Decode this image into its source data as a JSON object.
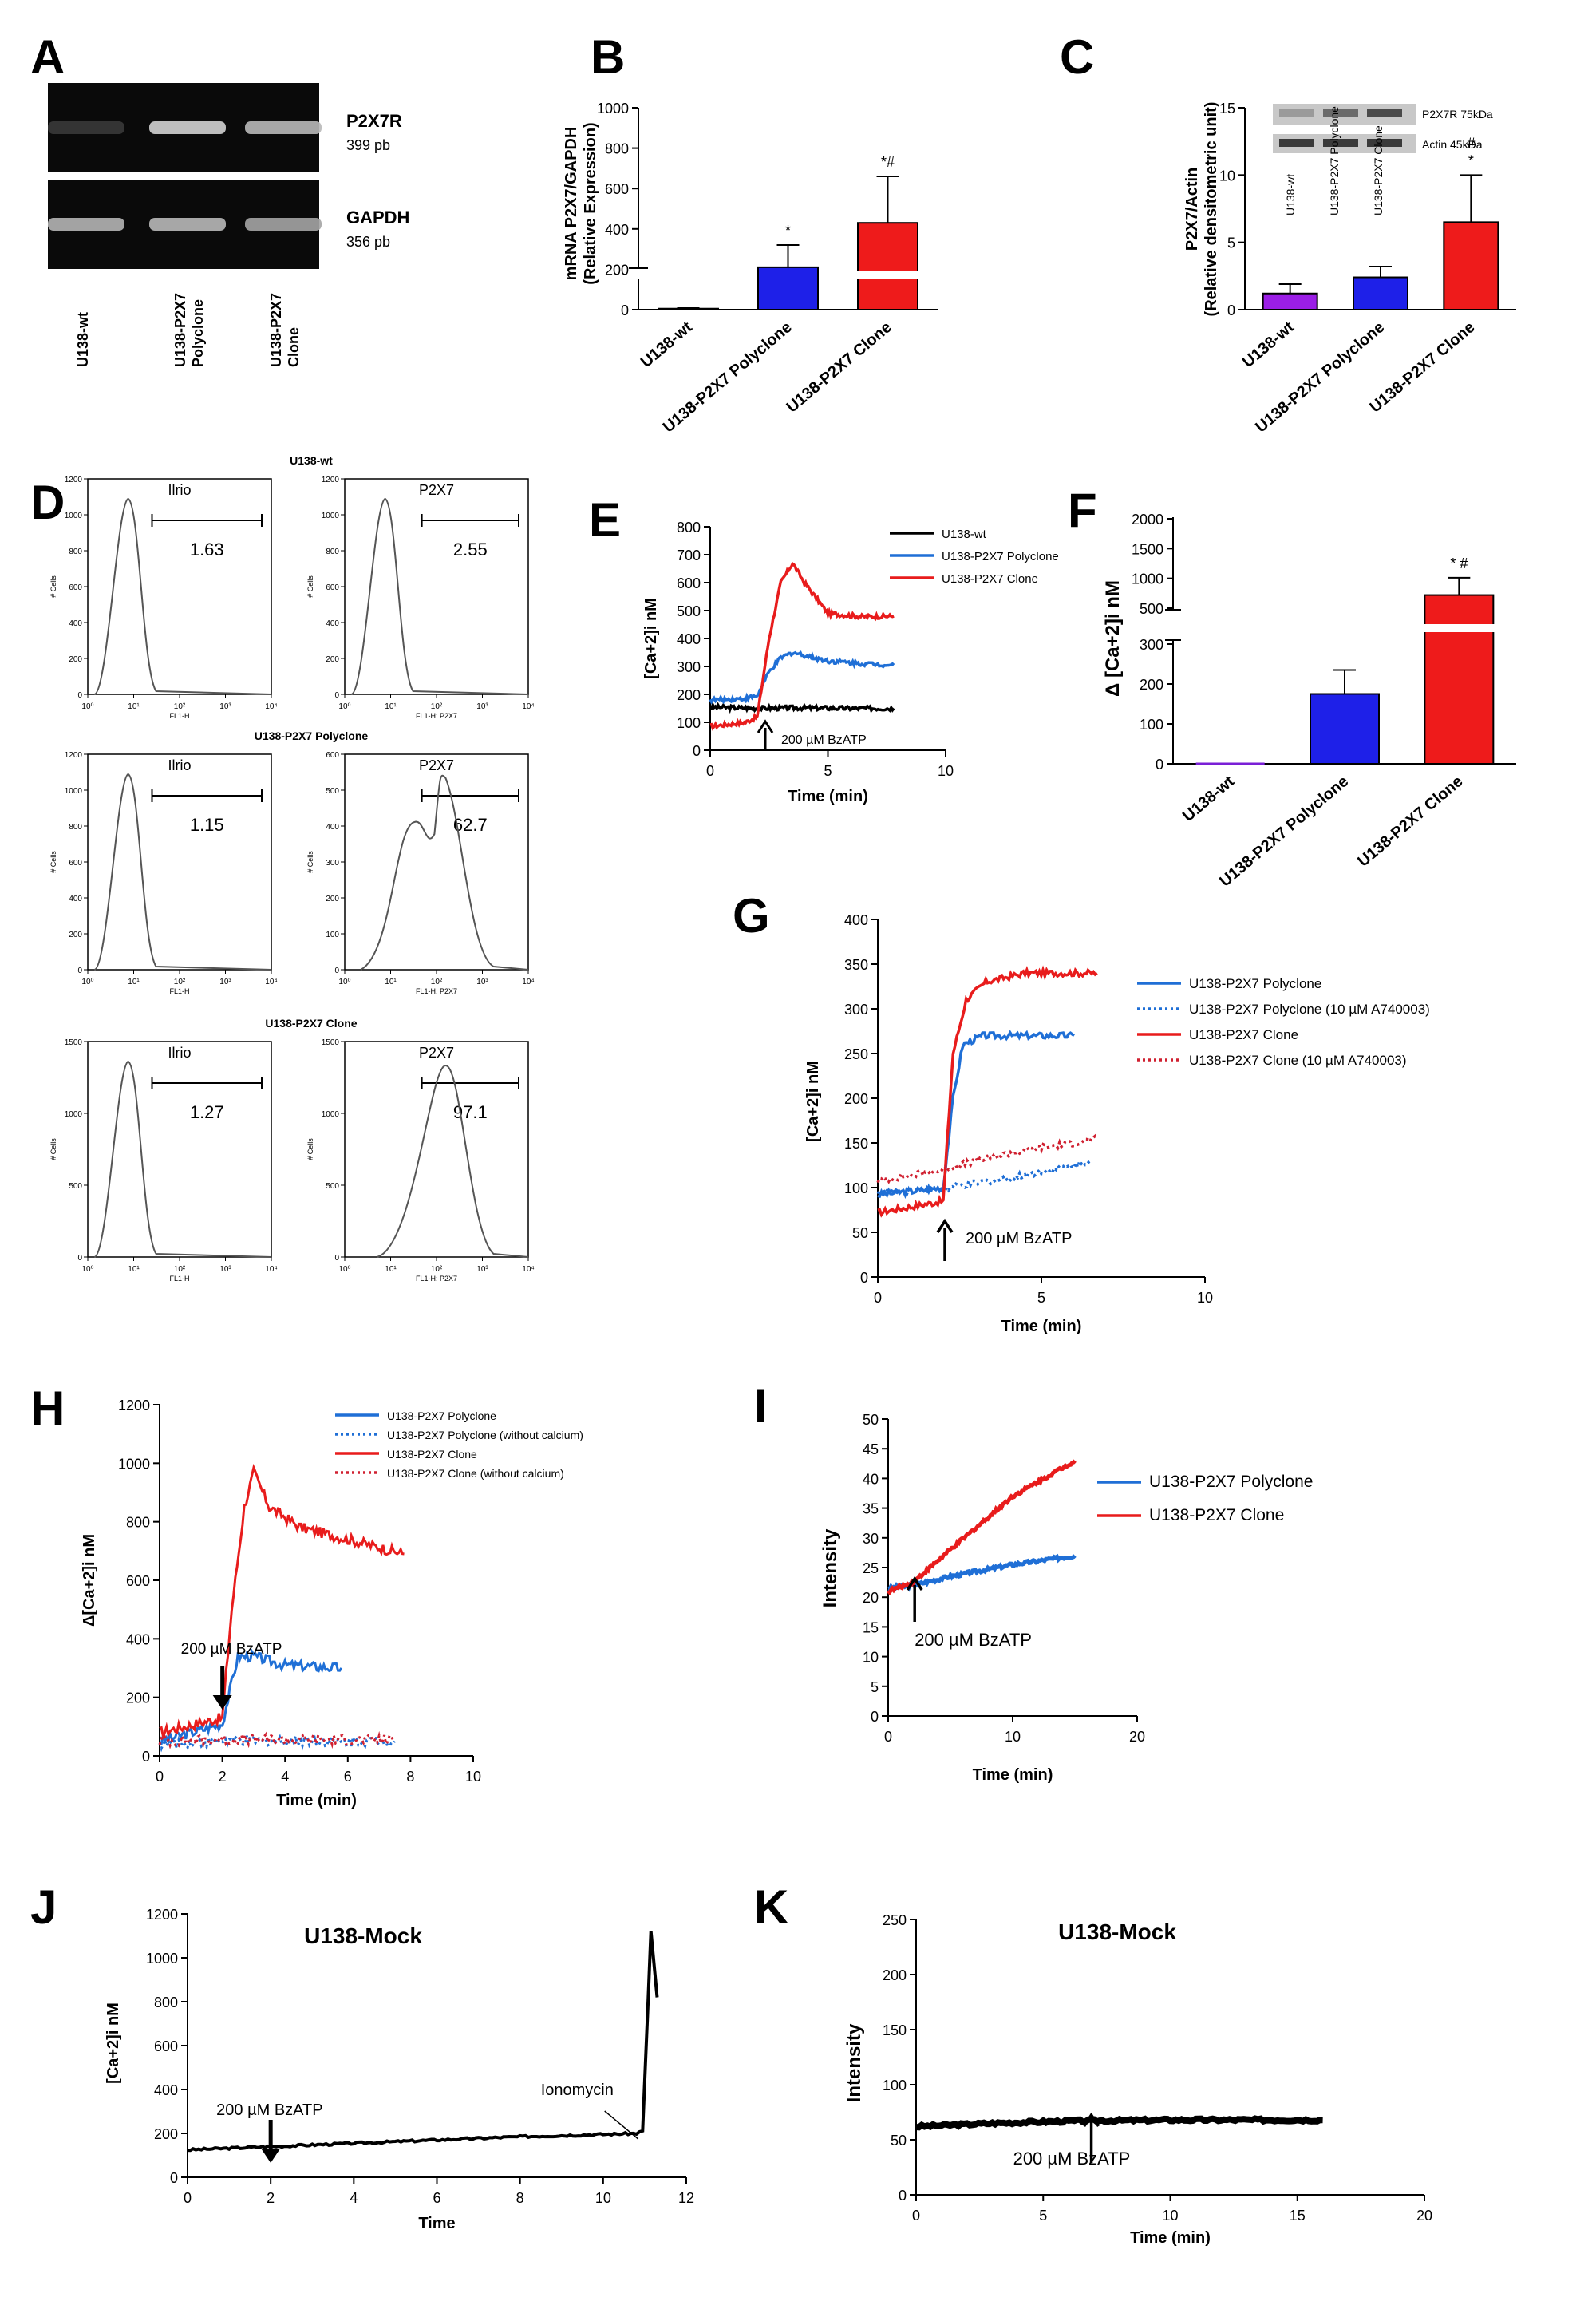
{
  "chart_data": [
    {
      "panel": "A",
      "type": "gel",
      "bands": [
        {
          "name": "P2X7R",
          "size": "399 pb",
          "intensities": [
            0.08,
            0.85,
            0.72
          ]
        },
        {
          "name": "GAPDH",
          "size": "356 pb",
          "intensities": [
            0.7,
            0.72,
            0.62
          ]
        }
      ],
      "lanes": [
        "U138-wt",
        "U138-P2X7 Polyclone",
        "U138-P2X7 Clone"
      ]
    },
    {
      "panel": "B",
      "type": "bar",
      "ylabel": "mRNA P2X7/GAPDH (Relative Expression)",
      "categories": [
        "U138-wt",
        "U138-P2X7 Polyclone",
        "U138-P2X7 Clone"
      ],
      "colors": [
        "#7a1fd6",
        "#1e20e8",
        "#ee1b1b"
      ],
      "values": [
        5,
        210,
        430
      ],
      "errors": [
        3,
        110,
        230
      ],
      "annotations": [
        "",
        "*",
        "*#"
      ],
      "yticks": [
        0,
        200,
        400,
        600,
        800,
        1000
      ],
      "ylim": [
        0,
        1000
      ]
    },
    {
      "panel": "C",
      "type": "bar",
      "ylabel": "P2X7/Actin (Relative densitometric unit)",
      "categories": [
        "U138-wt",
        "U138-P2X7 Polyclone",
        "U138-P2X7 Clone"
      ],
      "colors": [
        "#9b1ee6",
        "#1e20e8",
        "#ee1b1b"
      ],
      "values": [
        1.2,
        2.4,
        6.5
      ],
      "errors": [
        0.7,
        0.8,
        3.5
      ],
      "annotations": [
        "",
        "",
        "#\n*"
      ],
      "yticks": [
        0,
        5,
        10,
        15
      ],
      "ylim": [
        0,
        15
      ],
      "blot": {
        "labels": [
          "P2X7R 75kDa",
          "Actin 45kDa"
        ],
        "lanes": [
          "U138-wt",
          "U138-P2X7 Polyclone",
          "U138-P2X7 Clone"
        ]
      }
    },
    {
      "panel": "D",
      "type": "histogram",
      "rows": [
        {
          "title": "U138-wt",
          "panels": [
            {
              "label": "Ilrio",
              "value": "1.63",
              "xlabel": "FL1-H",
              "ymax": 1200,
              "yticks": [
                0,
                200,
                400,
                600,
                800,
                1000,
                1200
              ]
            },
            {
              "label": "P2X7",
              "value": "2.55",
              "xlabel": "FL1-H: P2X7",
              "ymax": 1200,
              "yticks": [
                0,
                200,
                400,
                600,
                800,
                1000,
                1200
              ]
            }
          ]
        },
        {
          "title": "U138-P2X7 Polyclone",
          "panels": [
            {
              "label": "Ilrio",
              "value": "1.15",
              "xlabel": "FL1-H",
              "ymax": 1200,
              "yticks": [
                0,
                200,
                400,
                600,
                800,
                1000,
                1200
              ]
            },
            {
              "label": "P2X7",
              "value": "62.7",
              "xlabel": "FL1-H: P2X7",
              "ymax": 600,
              "yticks": [
                0,
                100,
                200,
                300,
                400,
                500,
                600
              ]
            }
          ]
        },
        {
          "title": "U138-P2X7 Clone",
          "panels": [
            {
              "label": "Ilrio",
              "value": "1.27",
              "xlabel": "FL1-H",
              "ymax": 1500,
              "yticks": [
                0,
                500,
                1000,
                1500
              ]
            },
            {
              "label": "P2X7",
              "value": "97.1",
              "xlabel": "FL1-H: P2X7",
              "ymax": 1500,
              "yticks": [
                0,
                500,
                1000,
                1500
              ]
            }
          ]
        }
      ],
      "ylabel": "# Cells",
      "xticks": [
        "10⁰",
        "10¹",
        "10²",
        "10³",
        "10⁴"
      ]
    },
    {
      "panel": "E",
      "type": "line",
      "xlabel": "Time (min)",
      "ylabel": "[Ca+2]i nM",
      "xlim": [
        0,
        10
      ],
      "ylim": [
        0,
        800
      ],
      "xticks": [
        0,
        5,
        10
      ],
      "yticks": [
        0,
        100,
        200,
        300,
        400,
        500,
        600,
        700,
        800
      ],
      "annotation": "200 µM BzATP",
      "arrow_x": 2,
      "series": [
        {
          "name": "U138-wt",
          "color": "#000000",
          "points": [
            [
              0,
              155
            ],
            [
              2,
              150
            ],
            [
              4,
              152
            ],
            [
              6,
              150
            ],
            [
              7.8,
              150
            ]
          ]
        },
        {
          "name": "U138-P2X7 Polyclone",
          "color": "#1f6fd6",
          "points": [
            [
              0,
              180
            ],
            [
              1.5,
              185
            ],
            [
              2,
              195
            ],
            [
              2.5,
              280
            ],
            [
              3,
              330
            ],
            [
              3.5,
              350
            ],
            [
              5,
              320
            ],
            [
              6.5,
              310
            ],
            [
              7.8,
              305
            ]
          ]
        },
        {
          "name": "U138-P2X7 Clone",
          "color": "#e81c1c",
          "points": [
            [
              0,
              85
            ],
            [
              1.5,
              100
            ],
            [
              2,
              120
            ],
            [
              2.5,
              400
            ],
            [
              3,
              600
            ],
            [
              3.5,
              670
            ],
            [
              4,
              600
            ],
            [
              5,
              490
            ],
            [
              6.5,
              478
            ],
            [
              7.8,
              480
            ]
          ]
        }
      ]
    },
    {
      "panel": "F",
      "type": "bar",
      "ylabel": "Δ [Ca+2]i nM",
      "categories": [
        "U138-wt",
        "U138-P2X7 Polyclone",
        "U138-P2X7 Clone"
      ],
      "colors": [
        "#7a1fd6",
        "#1e20e8",
        "#ee1b1b"
      ],
      "values": [
        0,
        175,
        720
      ],
      "errors": [
        0,
        60,
        290
      ],
      "annotations": [
        "",
        "",
        "* #"
      ],
      "yticks": [
        0,
        100,
        200,
        300,
        500,
        1000,
        1500,
        2000
      ],
      "ylim": [
        0,
        2000
      ]
    },
    {
      "panel": "G",
      "type": "line",
      "xlabel": "Time (min)",
      "ylabel": "[Ca+2]i nM",
      "xlim": [
        0,
        10
      ],
      "ylim": [
        0,
        400
      ],
      "xticks": [
        0,
        5,
        10
      ],
      "yticks": [
        0,
        50,
        100,
        150,
        200,
        250,
        300,
        350,
        400
      ],
      "annotation": "200 µM BzATP",
      "arrow_x": 2,
      "series": [
        {
          "name": "U138-P2X7 Polyclone",
          "color": "#1f6fd6",
          "dash": false,
          "points": [
            [
              0,
              92
            ],
            [
              2,
              100
            ],
            [
              2.3,
              200
            ],
            [
              2.6,
              260
            ],
            [
              3.2,
              270
            ],
            [
              5,
              270
            ],
            [
              6,
              270
            ]
          ]
        },
        {
          "name": "U138-P2X7 Polyclone (10 µM A740003)",
          "color": "#1f6fd6",
          "dash": true,
          "points": [
            [
              0,
              95
            ],
            [
              2,
              98
            ],
            [
              3,
              105
            ],
            [
              4,
              110
            ],
            [
              5,
              118
            ],
            [
              6,
              125
            ],
            [
              6.5,
              130
            ]
          ]
        },
        {
          "name": "U138-P2X7 Clone",
          "color": "#e81c1c",
          "dash": false,
          "points": [
            [
              0,
              72
            ],
            [
              2,
              85
            ],
            [
              2.3,
              250
            ],
            [
              2.7,
              310
            ],
            [
              3.3,
              330
            ],
            [
              4.5,
              340
            ],
            [
              6.7,
              340
            ]
          ]
        },
        {
          "name": "U138-P2X7 Clone (10 µM A740003)",
          "color": "#d02030",
          "dash": true,
          "points": [
            [
              0,
              108
            ],
            [
              2,
              120
            ],
            [
              3,
              130
            ],
            [
              4,
              138
            ],
            [
              5,
              145
            ],
            [
              6,
              150
            ],
            [
              6.7,
              155
            ]
          ]
        }
      ]
    },
    {
      "panel": "H",
      "type": "line",
      "xlabel": "Time (min)",
      "ylabel": "Δ[Ca+2]i nM",
      "xlim": [
        0,
        10
      ],
      "ylim": [
        0,
        1200
      ],
      "xticks": [
        0,
        2,
        4,
        6,
        8,
        10
      ],
      "yticks": [
        0,
        200,
        400,
        600,
        800,
        1000,
        1200
      ],
      "annotation": "200 µM BzATP",
      "arrow_x": 1.9,
      "series": [
        {
          "name": "U138-P2X7 Polyclone",
          "color": "#1f6fd6",
          "dash": false,
          "points": [
            [
              0,
              50
            ],
            [
              2,
              110
            ],
            [
              2.3,
              250
            ],
            [
              2.5,
              340
            ],
            [
              3,
              340
            ],
            [
              4,
              310
            ],
            [
              5.8,
              300
            ]
          ]
        },
        {
          "name": "U138-P2X7 Polyclone (without calcium)",
          "color": "#1f6fd6",
          "dash": true,
          "points": [
            [
              0,
              40
            ],
            [
              2,
              50
            ],
            [
              4,
              52
            ],
            [
              6,
              50
            ],
            [
              7.5,
              50
            ]
          ]
        },
        {
          "name": "U138-P2X7 Clone",
          "color": "#e81c1c",
          "dash": false,
          "points": [
            [
              0,
              80
            ],
            [
              2,
              130
            ],
            [
              2.3,
              500
            ],
            [
              2.7,
              850
            ],
            [
              3,
              970
            ],
            [
              3.5,
              850
            ],
            [
              4.5,
              780
            ],
            [
              6,
              740
            ],
            [
              7.8,
              690
            ]
          ]
        },
        {
          "name": "U138-P2X7 Clone (without calcium)",
          "color": "#d02030",
          "dash": true,
          "points": [
            [
              0,
              50
            ],
            [
              2,
              55
            ],
            [
              4,
              56
            ],
            [
              6,
              55
            ],
            [
              7.5,
              55
            ]
          ]
        }
      ]
    },
    {
      "panel": "I",
      "type": "line",
      "xlabel": "Time (min)",
      "ylabel": "Intensity",
      "xlim": [
        0,
        20
      ],
      "ylim": [
        0,
        50
      ],
      "xticks": [
        0,
        10,
        20
      ],
      "yticks": [
        0,
        5,
        10,
        15,
        20,
        25,
        30,
        35,
        40,
        45,
        50
      ],
      "annotation": "200 µM BzATP",
      "arrow_x": 2,
      "series": [
        {
          "name": "U138-P2X7 Polyclone",
          "color": "#1f6fd6",
          "points": [
            [
              0,
              21.5
            ],
            [
              2,
              22
            ],
            [
              5,
              23.5
            ],
            [
              10,
              25.5
            ],
            [
              15,
              27
            ]
          ]
        },
        {
          "name": "U138-P2X7 Clone",
          "color": "#e81c1c",
          "points": [
            [
              0,
              21
            ],
            [
              2,
              22.5
            ],
            [
              5,
              28
            ],
            [
              10,
              37
            ],
            [
              15,
              43
            ]
          ]
        }
      ]
    },
    {
      "panel": "J",
      "type": "line",
      "title": "U138-Mock",
      "xlabel": "Time",
      "ylabel": "[Ca+2]i nM",
      "xlim": [
        0,
        12
      ],
      "ylim": [
        0,
        1200
      ],
      "xticks": [
        0,
        2,
        4,
        6,
        8,
        10,
        12
      ],
      "yticks": [
        0,
        200,
        400,
        600,
        800,
        1000,
        1200
      ],
      "annotations": [
        {
          "text": "200 µM BzATP",
          "x": 2
        },
        {
          "text": "Ionomycin",
          "x": 10.9
        }
      ],
      "series": [
        {
          "name": "U138-Mock",
          "color": "#000000",
          "points": [
            [
              0,
              125
            ],
            [
              2,
              140
            ],
            [
              4,
              155
            ],
            [
              6,
              170
            ],
            [
              8,
              185
            ],
            [
              10.8,
              200
            ],
            [
              10.95,
              210
            ],
            [
              11.15,
              1120
            ],
            [
              11.3,
              820
            ]
          ]
        }
      ]
    },
    {
      "panel": "K",
      "type": "line",
      "title": "U138-Mock",
      "xlabel": "Time (min)",
      "ylabel": "Intensity",
      "xlim": [
        0,
        20
      ],
      "ylim": [
        0,
        250
      ],
      "xticks": [
        0,
        5,
        10,
        15,
        20
      ],
      "yticks": [
        0,
        50,
        100,
        150,
        200,
        250
      ],
      "annotation": "200 µM BzATP",
      "arrow_x": 6.8,
      "series": [
        {
          "name": "U138-Mock",
          "color": "#000000",
          "points": [
            [
              0,
              62
            ],
            [
              3,
              65
            ],
            [
              6,
              67
            ],
            [
              10,
              68
            ],
            [
              16,
              68
            ]
          ]
        }
      ]
    }
  ]
}
